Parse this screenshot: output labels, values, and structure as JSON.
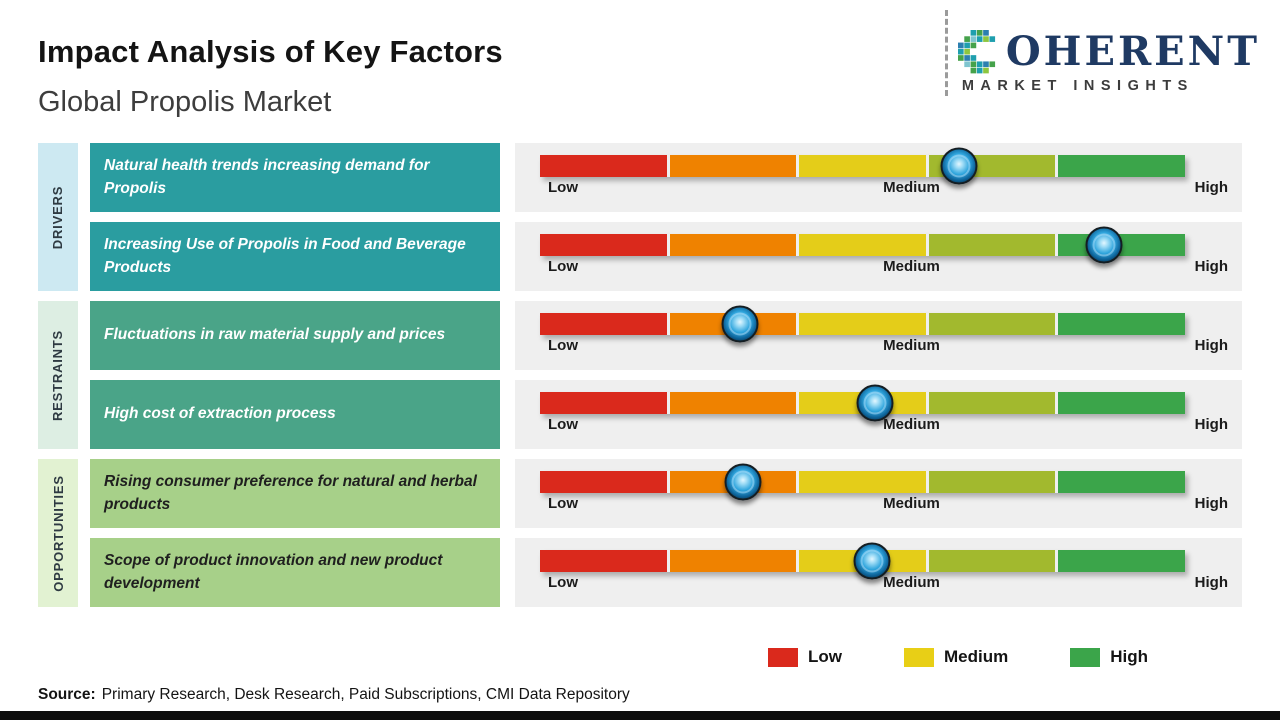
{
  "header": {
    "title": "Impact Analysis of Key Factors",
    "subtitle": "Global Propolis Market"
  },
  "logo": {
    "name": "COHERENT",
    "name_rest": "OHERENT",
    "tagline": "MARKET INSIGHTS",
    "brand_color": "#1f3a63"
  },
  "scale": {
    "low": "Low",
    "medium": "Medium",
    "high": "High"
  },
  "bar_colors": [
    "#da291c",
    "#ef8200",
    "#e4cd19",
    "#a2b92e",
    "#3ba54a"
  ],
  "groups": [
    {
      "label": "DRIVERS",
      "tab_color": "#cde9f2",
      "card_color": "#2a9da0",
      "rows": [
        {
          "text": "Natural health trends increasing demand for Propolis",
          "impact_pct": 65,
          "impact_level": "Medium-High"
        },
        {
          "text": "Increasing Use of Propolis in Food and Beverage Products",
          "impact_pct": 87.5,
          "impact_level": "High"
        }
      ]
    },
    {
      "label": "RESTRAINTS",
      "tab_color": "#ddeee3",
      "card_color": "#4aa488",
      "rows": [
        {
          "text": "Fluctuations in raw material supply and prices",
          "impact_pct": 31,
          "impact_level": "Low-Medium"
        },
        {
          "text": "High cost of extraction process",
          "impact_pct": 52,
          "impact_level": "Medium"
        }
      ]
    },
    {
      "label": "OPPORTUNITIES",
      "tab_color": "#e2f2d2",
      "card_color": "#a7d089",
      "rows": [
        {
          "text": "Rising consumer preference for natural and herbal products",
          "impact_pct": 31.5,
          "impact_level": "Low-Medium"
        },
        {
          "text": "Scope of product innovation and new product development",
          "impact_pct": 51.5,
          "impact_level": "Medium"
        }
      ]
    }
  ],
  "legend": {
    "items": [
      {
        "label": "Low",
        "color": "#da291c"
      },
      {
        "label": "Medium",
        "color": "#e8cf16"
      },
      {
        "label": "High",
        "color": "#3ba54a"
      }
    ]
  },
  "source": {
    "label": "Source:",
    "text": "Primary Research, Desk Research, Paid Subscriptions, CMI Data Repository"
  },
  "chart_data": {
    "type": "scatter",
    "title": "Impact Analysis of Key Factors",
    "subtitle": "Global Propolis Market",
    "x_scale_labels": [
      "Low",
      "Medium",
      "High"
    ],
    "x_range_pct": [
      0,
      100
    ],
    "legend": [
      "Low",
      "Medium",
      "High"
    ],
    "legend_position": "bottom-right",
    "points": [
      {
        "group": "Drivers",
        "factor": "Natural health trends increasing demand for Propolis",
        "impact_pct": 65,
        "impact_level": "Medium-High"
      },
      {
        "group": "Drivers",
        "factor": "Increasing Use of Propolis in Food and Beverage Products",
        "impact_pct": 87.5,
        "impact_level": "High"
      },
      {
        "group": "Restraints",
        "factor": "Fluctuations in raw material supply and prices",
        "impact_pct": 31,
        "impact_level": "Low-Medium"
      },
      {
        "group": "Restraints",
        "factor": "High cost of extraction process",
        "impact_pct": 52,
        "impact_level": "Medium"
      },
      {
        "group": "Opportunities",
        "factor": "Rising consumer preference for natural and herbal products",
        "impact_pct": 31.5,
        "impact_level": "Low-Medium"
      },
      {
        "group": "Opportunities",
        "factor": "Scope of product innovation and new product development",
        "impact_pct": 51.5,
        "impact_level": "Medium"
      }
    ]
  }
}
